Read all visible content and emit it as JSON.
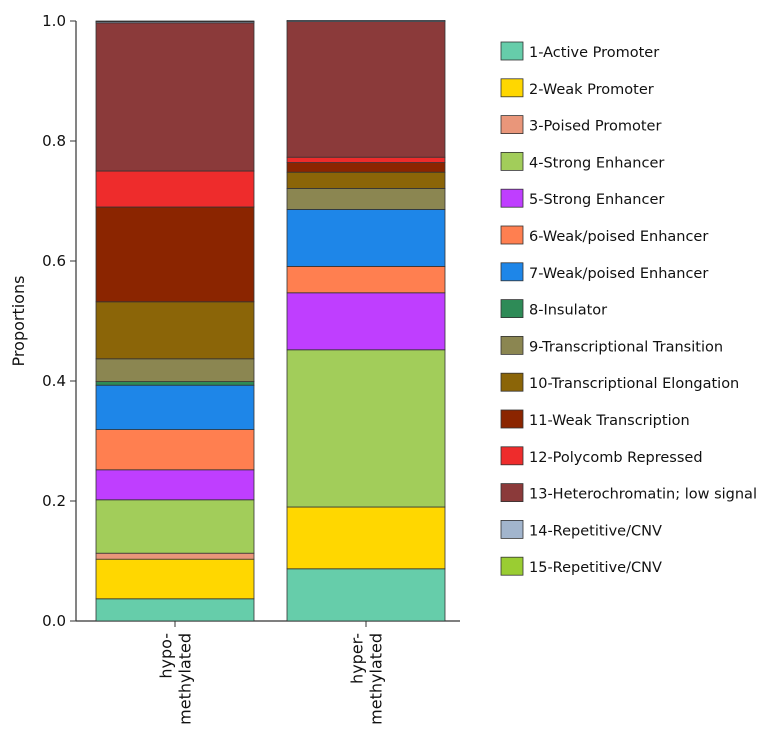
{
  "chart_data": {
    "type": "bar",
    "stacked": true,
    "title": "",
    "xlabel": "",
    "ylabel": "Proportions",
    "ylim": [
      0,
      1
    ],
    "yticks": [
      "0.0",
      "0.2",
      "0.4",
      "0.6",
      "0.8",
      "1.0"
    ],
    "categories": [
      {
        "lines": [
          "hypo-",
          "methylated"
        ]
      },
      {
        "lines": [
          "hyper-",
          "methylated"
        ]
      }
    ],
    "legend_position": "right",
    "series": [
      {
        "name": "1-Active Promoter",
        "color": "#66CDAA",
        "values": [
          0.037,
          0.087
        ]
      },
      {
        "name": "2-Weak Promoter",
        "color": "#FFD700",
        "values": [
          0.066,
          0.103
        ]
      },
      {
        "name": "3-Poised Promoter",
        "color": "#E9967A",
        "values": [
          0.01,
          0.0
        ]
      },
      {
        "name": "4-Strong Enhancer",
        "color": "#A2CD5A",
        "values": [
          0.089,
          0.262
        ]
      },
      {
        "name": "5-Strong Enhancer",
        "color": "#BF3EFF",
        "values": [
          0.05,
          0.095
        ]
      },
      {
        "name": "6-Weak/poised Enhancer",
        "color": "#FF7F50",
        "values": [
          0.067,
          0.044
        ]
      },
      {
        "name": "7-Weak/poised Enhancer",
        "color": "#1E86E8",
        "values": [
          0.074,
          0.095
        ]
      },
      {
        "name": "8-Insulator",
        "color": "#2E8B57",
        "values": [
          0.006,
          0.0
        ]
      },
      {
        "name": "9-Transcriptional Transition",
        "color": "#8B8651",
        "values": [
          0.038,
          0.035
        ]
      },
      {
        "name": "10-Transcriptional Elongation",
        "color": "#8B6508",
        "values": [
          0.095,
          0.027
        ]
      },
      {
        "name": "11-Weak Transcription",
        "color": "#8B2500",
        "values": [
          0.158,
          0.016
        ]
      },
      {
        "name": "12-Polycomb Repressed",
        "color": "#EE2C2C",
        "values": [
          0.06,
          0.009
        ]
      },
      {
        "name": "13-Heterochromatin; low signal",
        "color": "#8B3A3A",
        "values": [
          0.247,
          0.226
        ]
      },
      {
        "name": "14-Repetitive/CNV",
        "color": "#A2B5CD",
        "values": [
          0.002,
          0.002
        ]
      },
      {
        "name": "15-Repetitive/CNV",
        "color": "#9ACD32",
        "values": [
          0.001,
          0.0
        ]
      }
    ]
  }
}
